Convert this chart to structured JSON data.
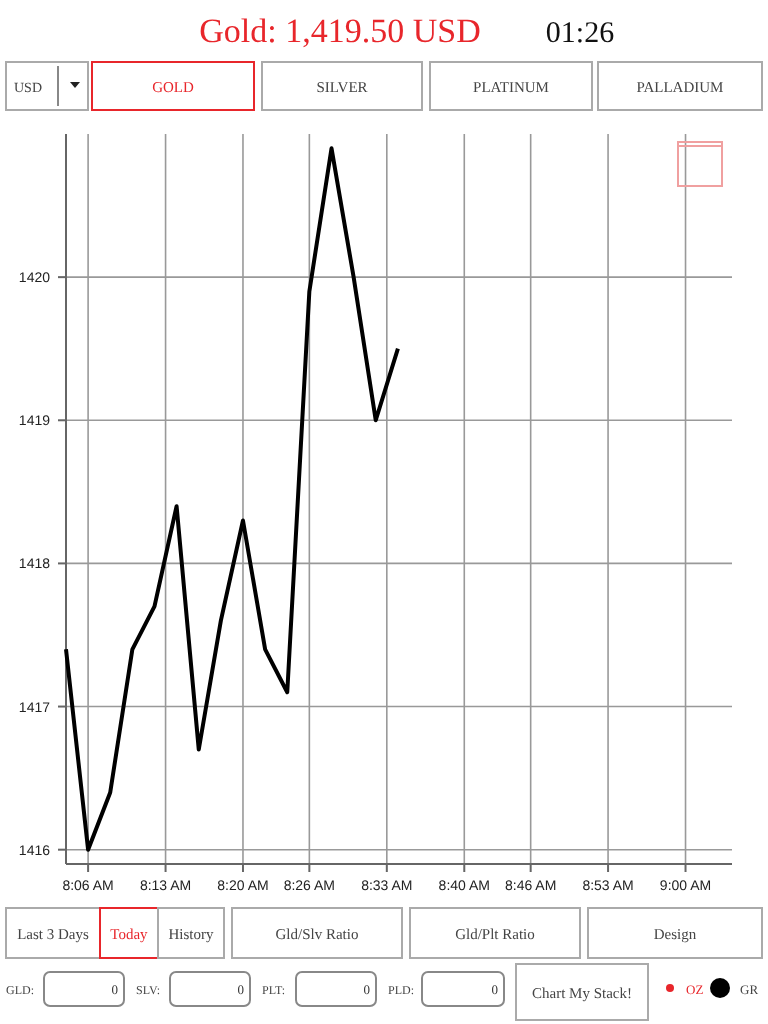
{
  "chart_data": {
    "type": "line",
    "title": "Gold: 1,419.50 USD",
    "subtitle": "01:26",
    "x": [
      8.0667,
      8.1,
      8.1333,
      8.1667,
      8.2,
      8.2333,
      8.2667,
      8.3,
      8.3333,
      8.3667,
      8.4,
      8.4333,
      8.4667,
      8.5,
      8.5333,
      8.5667
    ],
    "series": [
      {
        "color": "#000000",
        "values": [
          1417.4,
          1416.0,
          1416.4,
          1417.4,
          1417.7,
          1418.4,
          1416.7,
          1417.6,
          1418.3,
          1417.4,
          1417.1,
          1419.9,
          1420.9,
          1420.0,
          1419.0,
          1419.5
        ]
      }
    ],
    "xlim": [
      8.0667,
      9.07
    ],
    "xticks": [
      {
        "value": 8.1,
        "label": "8:06 AM"
      },
      {
        "value": 8.2167,
        "label": "8:13 AM"
      },
      {
        "value": 8.3333,
        "label": "8:20 AM"
      },
      {
        "value": 8.4333,
        "label": "8:26 AM"
      },
      {
        "value": 8.55,
        "label": "8:33 AM"
      },
      {
        "value": 8.6667,
        "label": "8:40 AM"
      },
      {
        "value": 8.7667,
        "label": "8:46 AM"
      },
      {
        "value": 8.8833,
        "label": "8:53 AM"
      },
      {
        "value": 9.0,
        "label": "9:00 AM"
      }
    ],
    "ylim": [
      1415.9,
      1421
    ],
    "yticks": [
      1416,
      1417,
      1418,
      1419,
      1420
    ],
    "grid": true,
    "marker": "none",
    "line_style": "solid",
    "annotations": [
      "USD",
      "GOLD",
      "SILVER",
      "PLATINUM",
      "PALLADIUM",
      "Last 3 Days",
      "Today",
      "History",
      "Gld/Slv Ratio",
      "Gld/Plt Ratio",
      "Design",
      "GLD:",
      "0",
      "SLV:",
      "0",
      "PLT:",
      "0",
      "PLD:",
      "0",
      "Chart My Stack!",
      "OZ",
      "GR"
    ]
  }
}
